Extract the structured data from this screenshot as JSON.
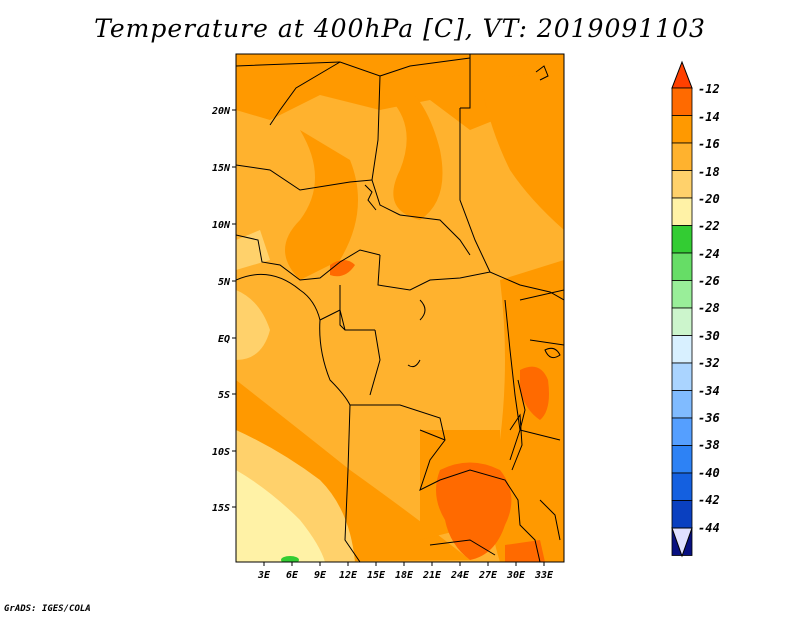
{
  "title": "Temperature at 400hPa [C], VT: 2019091103",
  "credit": "GrADS: IGES/COLA",
  "lat_labels": [
    "20N",
    "15N",
    "10N",
    "5N",
    "EQ",
    "5S",
    "10S",
    "15S"
  ],
  "lon_labels": [
    "3E",
    "6E",
    "9E",
    "12E",
    "15E",
    "18E",
    "21E",
    "24E",
    "27E",
    "30E",
    "33E"
  ],
  "colorbar": {
    "labels": [
      "-12",
      "-14",
      "-16",
      "-18",
      "-20",
      "-22",
      "-24",
      "-26",
      "-28",
      "-30",
      "-32",
      "-34",
      "-36",
      "-38",
      "-40",
      "-42",
      "-44"
    ],
    "colors": [
      "#ff4000",
      "#ff6a00",
      "#ff9900",
      "#ffb22e",
      "#ffd16b",
      "#fff2a6",
      "#33cc33",
      "#66dd66",
      "#99ee99",
      "#ccf5cc",
      "#d8f0ff",
      "#aad4ff",
      "#80bbff",
      "#559fff",
      "#2d82f5",
      "#1460e0",
      "#0a40c0",
      "#081080"
    ],
    "top_arrow_color": "#ff4000",
    "bottom_arrow_color": "#e0e0ff"
  },
  "map_colors": {
    "base": "#ffb22e",
    "warm": "#ff9900",
    "warmer": "#ff6a00",
    "cool": "#ffd16b",
    "coolest": "#fff2a6",
    "green": "#33cc33"
  }
}
